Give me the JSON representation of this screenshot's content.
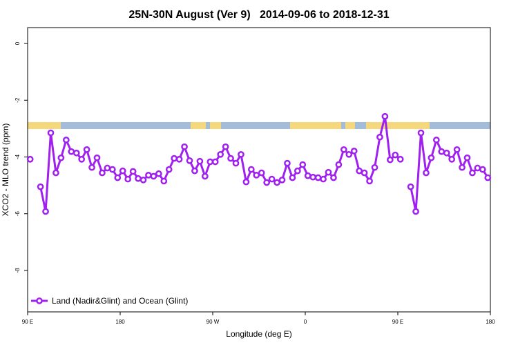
{
  "chart_data": {
    "type": "line",
    "title": "25N-30N August (Ver 9)   2014-09-06 to 2018-12-31",
    "xlabel": "Longitude (deg E)",
    "ylabel": "XCO2 - MLO trend (ppm)",
    "x": [
      92.5,
      97.5,
      102.5,
      107.5,
      112.5,
      117.5,
      122.5,
      127.5,
      132.5,
      137.5,
      142.5,
      147.5,
      152.5,
      157.5,
      162.5,
      167.5,
      172.5,
      177.5,
      182.5,
      187.5,
      192.5,
      197.5,
      202.5,
      207.5,
      212.5,
      217.5,
      222.5,
      227.5,
      232.5,
      237.5,
      242.5,
      247.5,
      252.5,
      257.5,
      262.5,
      267.5,
      272.5,
      277.5,
      282.5,
      287.5,
      292.5,
      297.5,
      302.5,
      307.5,
      312.5,
      317.5,
      322.5,
      327.5,
      332.5,
      337.5,
      342.5,
      347.5,
      352.5,
      357.5,
      362.5,
      367.5,
      372.5,
      377.5,
      382.5,
      387.5,
      392.5,
      397.5,
      402.5,
      407.5,
      412.5,
      417.5,
      422.5,
      427.5,
      432.5,
      437.5,
      442.5,
      447.5,
      452.5,
      457.5,
      462.5,
      467.5,
      472.5,
      477.5,
      482.5,
      487.5,
      492.5,
      497.5,
      502.5,
      507.5,
      512.5,
      517.5,
      522.5,
      527.5,
      532.5,
      537.5
    ],
    "series": [
      {
        "name": "Land (Nadir&Glint) and Ocean (Glint)",
        "color": "#a020f0",
        "values": [
          -4.08,
          null,
          -5.05,
          -5.92,
          -3.15,
          -4.56,
          -4.03,
          -3.4,
          -3.81,
          -3.86,
          -4.08,
          -3.74,
          -4.37,
          -4.03,
          -4.56,
          -4.39,
          -4.44,
          -4.73,
          -4.49,
          -4.78,
          -4.51,
          -4.76,
          -4.81,
          -4.64,
          -4.68,
          -4.59,
          -4.85,
          -4.44,
          -4.05,
          -4.08,
          -3.64,
          -4.13,
          -4.49,
          -4.15,
          -4.68,
          -4.17,
          -4.17,
          -3.91,
          -3.64,
          -4.05,
          -4.22,
          -3.91,
          -4.88,
          -4.44,
          -4.64,
          -4.56,
          -4.9,
          -4.78,
          -4.9,
          -4.81,
          -4.22,
          -4.73,
          -4.49,
          -4.27,
          -4.66,
          -4.71,
          -4.73,
          -4.78,
          -4.54,
          -4.73,
          -4.27,
          -3.74,
          -3.91,
          -3.79,
          -4.49,
          -4.56,
          -4.85,
          -4.37,
          -3.3,
          -2.57,
          -4.1,
          -3.93,
          -4.08,
          null,
          -5.05,
          -5.92,
          -3.15,
          -4.56,
          -4.03,
          -3.4,
          -3.81,
          -3.86,
          -4.08,
          -3.74,
          -4.37,
          -4.03,
          -4.56,
          -4.39,
          -4.44,
          -4.73
        ]
      }
    ],
    "xlim": [
      90,
      540
    ],
    "xticks": [
      {
        "value": 90,
        "label": "90 E"
      },
      {
        "value": 180,
        "label": "180"
      },
      {
        "value": 270,
        "label": "90 W"
      },
      {
        "value": 360,
        "label": "0"
      },
      {
        "value": 450,
        "label": "90 E"
      },
      {
        "value": 540,
        "label": "180"
      }
    ],
    "ylim": [
      -9.46,
      0.56
    ],
    "yticks": [
      0,
      -2,
      -4,
      -6,
      -8
    ],
    "legend": "bottomleft"
  }
}
